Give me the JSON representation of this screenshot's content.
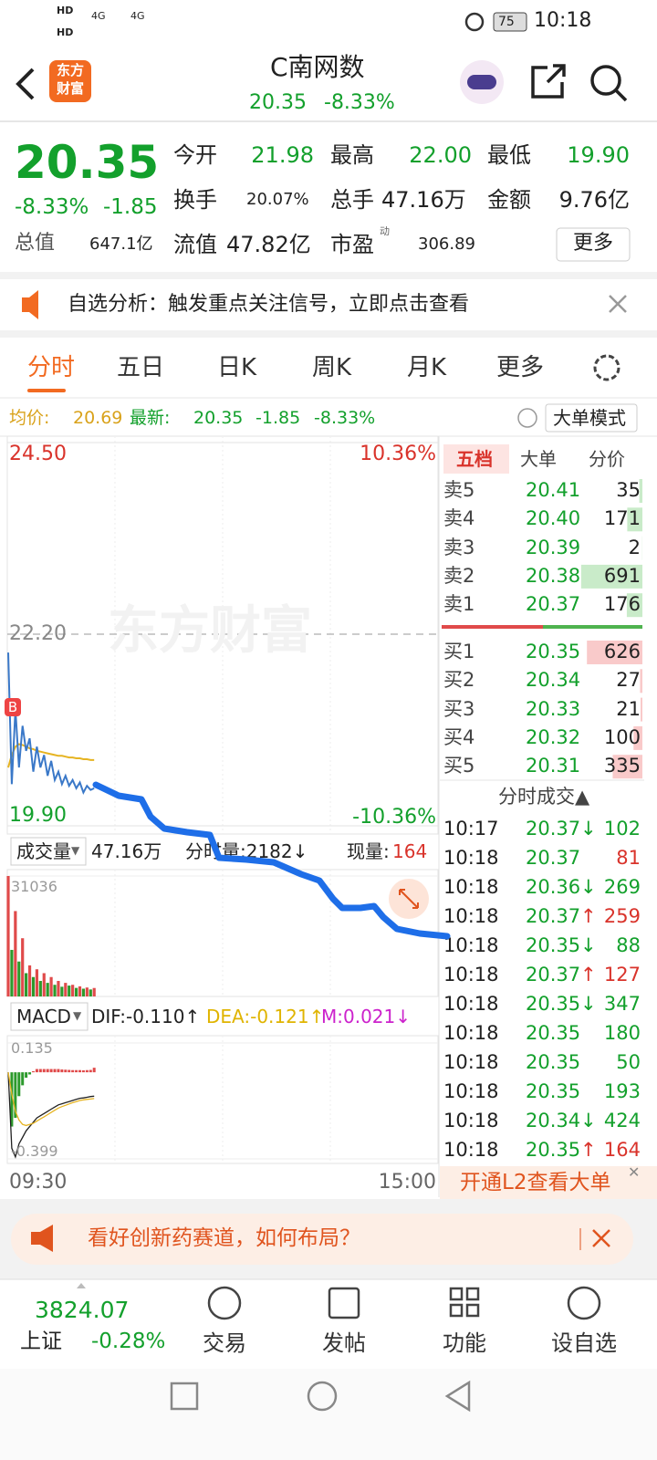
{
  "status_bar": {
    "hd": [
      "HD",
      "HD"
    ],
    "net": [
      "4G",
      "4G"
    ],
    "battery": "75",
    "time": "10:18"
  },
  "header": {
    "logo": [
      "东方",
      "财富"
    ],
    "title": "C南网数",
    "price": "20.35",
    "change_pct": "-8.33%"
  },
  "quote": {
    "price": "20.35",
    "change_pct": "-8.33%",
    "change": "-1.85",
    "fields": [
      {
        "label": "今开",
        "value": "21.98"
      },
      {
        "label": "最高",
        "value": "22.00"
      },
      {
        "label": "最低",
        "value": "19.90"
      },
      {
        "label": "换手",
        "value": "20.07%"
      },
      {
        "label": "总手",
        "value": "47.16万"
      },
      {
        "label": "金额",
        "value": "9.76亿"
      },
      {
        "label": "总值",
        "value": "647.1亿"
      },
      {
        "label": "流值",
        "value": "47.82亿"
      },
      {
        "label": "市盈",
        "value": "306.89"
      }
    ],
    "pe_mark": "动",
    "more_button": "更多"
  },
  "notice": "自选分析：触发重点关注信号，立即点击查看",
  "tabs": [
    "分时",
    "五日",
    "日K",
    "周K",
    "月K",
    "更多"
  ],
  "info_line": {
    "avg_label": "均价:",
    "avg": "20.69",
    "latest_label": "最新:",
    "latest": "20.35",
    "change": "-1.85",
    "change_pct": "-8.33%",
    "mode_button": "大单模式"
  },
  "intraday": {
    "ylim": [
      19.9,
      24.5
    ],
    "yticks": [
      {
        "value": 24.5,
        "label": "24.50"
      },
      {
        "value": 22.2,
        "label": "22.20"
      },
      {
        "value": 19.9,
        "label": "19.90"
      }
    ],
    "pct_labels": [
      "10.36%",
      "-10.36%"
    ],
    "watermark": "东方财富",
    "marker": "B",
    "price": [
      21.98,
      20.4,
      21.3,
      20.6,
      21.1,
      20.8,
      20.95,
      20.55,
      20.85,
      20.6,
      20.75,
      20.5,
      20.68,
      20.45,
      20.55,
      20.4,
      20.5,
      20.38,
      20.45,
      20.35,
      20.42,
      20.3,
      20.38,
      20.33,
      20.35
    ],
    "avg": [
      20.6,
      20.75,
      20.85,
      20.88,
      20.87,
      20.85,
      20.83,
      20.82,
      20.8,
      20.79,
      20.78,
      20.77,
      20.76,
      20.75,
      20.74,
      20.74,
      20.73,
      20.72,
      20.72,
      20.71,
      20.71,
      20.7,
      20.7,
      20.69,
      20.69
    ],
    "x_labels": [
      "09:30",
      "15:00"
    ]
  },
  "volume": {
    "label": "成交量",
    "total": "47.16万",
    "minute": "分时量:2182↓",
    "current_label": "现量:",
    "current": "164",
    "ylim": [
      0,
      31036
    ],
    "yticks": [
      31036
    ],
    "values": [
      31036,
      12000,
      22000,
      9000,
      15000,
      6000,
      8000,
      5000,
      7000,
      4000,
      6000,
      3500,
      5000,
      3000,
      4000,
      2500,
      3500,
      2800,
      3000,
      2200,
      2600,
      2000,
      2300,
      1800,
      2182
    ]
  },
  "macd": {
    "label": "MACD",
    "dif": "DIF:-0.110↑",
    "dea": "DEA:-0.121↑",
    "m": "M:0.021↓",
    "ylim": [
      -0.399,
      0.135
    ],
    "yticks": [
      0.135,
      -0.399
    ],
    "dif_values": [
      0,
      -0.35,
      -0.39,
      -0.33,
      -0.3,
      -0.27,
      -0.25,
      -0.23,
      -0.21,
      -0.2,
      -0.19,
      -0.18,
      -0.17,
      -0.16,
      -0.15,
      -0.145,
      -0.14,
      -0.135,
      -0.13,
      -0.125,
      -0.12,
      -0.118,
      -0.115,
      -0.112,
      -0.11
    ],
    "dea_values": [
      0,
      -0.1,
      -0.18,
      -0.22,
      -0.24,
      -0.245,
      -0.24,
      -0.235,
      -0.225,
      -0.215,
      -0.205,
      -0.195,
      -0.185,
      -0.175,
      -0.165,
      -0.158,
      -0.152,
      -0.146,
      -0.14,
      -0.135,
      -0.13,
      -0.127,
      -0.125,
      -0.123,
      -0.121
    ],
    "m_values": [
      0,
      -0.25,
      -0.21,
      -0.11,
      -0.06,
      -0.025,
      -0.01,
      0.005,
      0.015,
      0.015,
      0.015,
      0.015,
      0.015,
      0.015,
      0.015,
      0.013,
      0.012,
      0.011,
      0.01,
      0.01,
      0.01,
      0.009,
      0.01,
      0.011,
      0.021
    ]
  },
  "order_book": {
    "tabs": [
      "五档",
      "大单",
      "分价"
    ],
    "asks": [
      {
        "label": "卖5",
        "price": "20.41",
        "volume": 35
      },
      {
        "label": "卖4",
        "price": "20.40",
        "volume": 171
      },
      {
        "label": "卖3",
        "price": "20.39",
        "volume": 2
      },
      {
        "label": "卖2",
        "price": "20.38",
        "volume": 691
      },
      {
        "label": "卖1",
        "price": "20.37",
        "volume": 176
      }
    ],
    "bids": [
      {
        "label": "买1",
        "price": "20.35",
        "volume": 626
      },
      {
        "label": "买2",
        "price": "20.34",
        "volume": 27
      },
      {
        "label": "买3",
        "price": "20.33",
        "volume": 21
      },
      {
        "label": "买4",
        "price": "20.32",
        "volume": 100
      },
      {
        "label": "买5",
        "price": "20.31",
        "volume": 335
      }
    ]
  },
  "trades": {
    "title": "分时成交▲",
    "rows": [
      {
        "time": "10:17",
        "price": "20.37",
        "arrow": "↓",
        "volume": 102,
        "color": "green"
      },
      {
        "time": "10:18",
        "price": "20.37",
        "volume": 81,
        "color": "red"
      },
      {
        "time": "10:18",
        "price": "20.36",
        "arrow": "↓",
        "volume": 269,
        "color": "green"
      },
      {
        "time": "10:18",
        "price": "20.37",
        "arrow": "↑",
        "volume": 259,
        "color": "red"
      },
      {
        "time": "10:18",
        "price": "20.35",
        "arrow": "↓",
        "volume": 88,
        "color": "green"
      },
      {
        "time": "10:18",
        "price": "20.37",
        "arrow": "↑",
        "volume": 127,
        "color": "red"
      },
      {
        "time": "10:18",
        "price": "20.35",
        "arrow": "↓",
        "volume": 347,
        "color": "green"
      },
      {
        "time": "10:18",
        "price": "20.35",
        "volume": 180,
        "color": "green"
      },
      {
        "time": "10:18",
        "price": "20.35",
        "volume": 50,
        "color": "green"
      },
      {
        "time": "10:18",
        "price": "20.35",
        "volume": 193,
        "color": "green"
      },
      {
        "time": "10:18",
        "price": "20.34",
        "arrow": "↓",
        "volume": 424,
        "color": "green"
      },
      {
        "time": "10:18",
        "price": "20.35",
        "arrow": "↑",
        "volume": 164,
        "color": "red"
      }
    ]
  },
  "l2_banner": "开通L2查看大单",
  "ad_banner": "看好创新药赛道，如何布局？",
  "bottom_nav": {
    "index_value": "3824.07",
    "index_name": "上证",
    "index_change": "-0.28%",
    "items": [
      "交易",
      "发帖",
      "功能",
      "设自选"
    ]
  }
}
